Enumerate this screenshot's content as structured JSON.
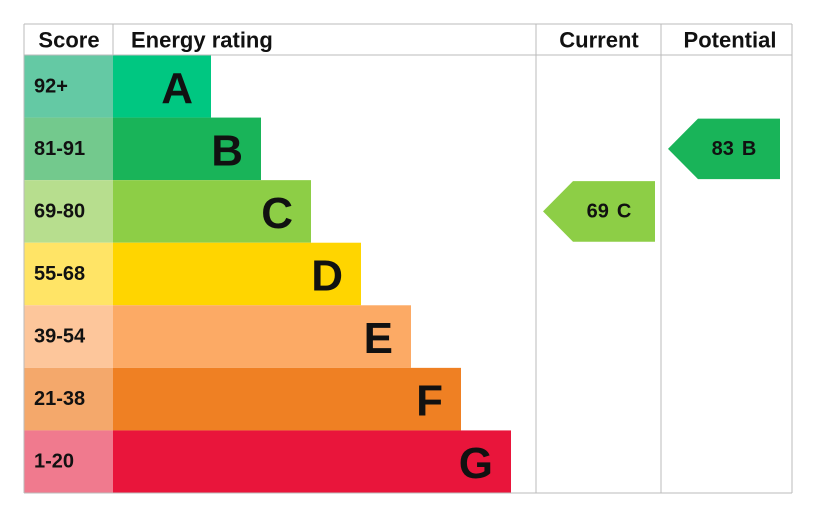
{
  "header": {
    "score": "Score",
    "rating": "Energy rating",
    "current": "Current",
    "potential": "Potential"
  },
  "rows": [
    {
      "score": "92+",
      "band": "A",
      "color": "#00c781",
      "score_color": "#64c9a4"
    },
    {
      "score": "81-91",
      "band": "B",
      "color": "#19b459",
      "score_color": "#73c98d"
    },
    {
      "score": "69-80",
      "band": "C",
      "color": "#8dce46",
      "score_color": "#b7de8e"
    },
    {
      "score": "55-68",
      "band": "D",
      "color": "#ffd500",
      "score_color": "#ffe466"
    },
    {
      "score": "39-54",
      "band": "E",
      "color": "#fcaa65",
      "score_color": "#fdc69b"
    },
    {
      "score": "21-38",
      "band": "F",
      "color": "#ef8023",
      "score_color": "#f4a86b"
    },
    {
      "score": "1-20",
      "band": "G",
      "color": "#e9153b",
      "score_color": "#f07a8e"
    }
  ],
  "current": {
    "score": 69,
    "band": "C"
  },
  "potential": {
    "score": 83,
    "band": "B"
  }
}
